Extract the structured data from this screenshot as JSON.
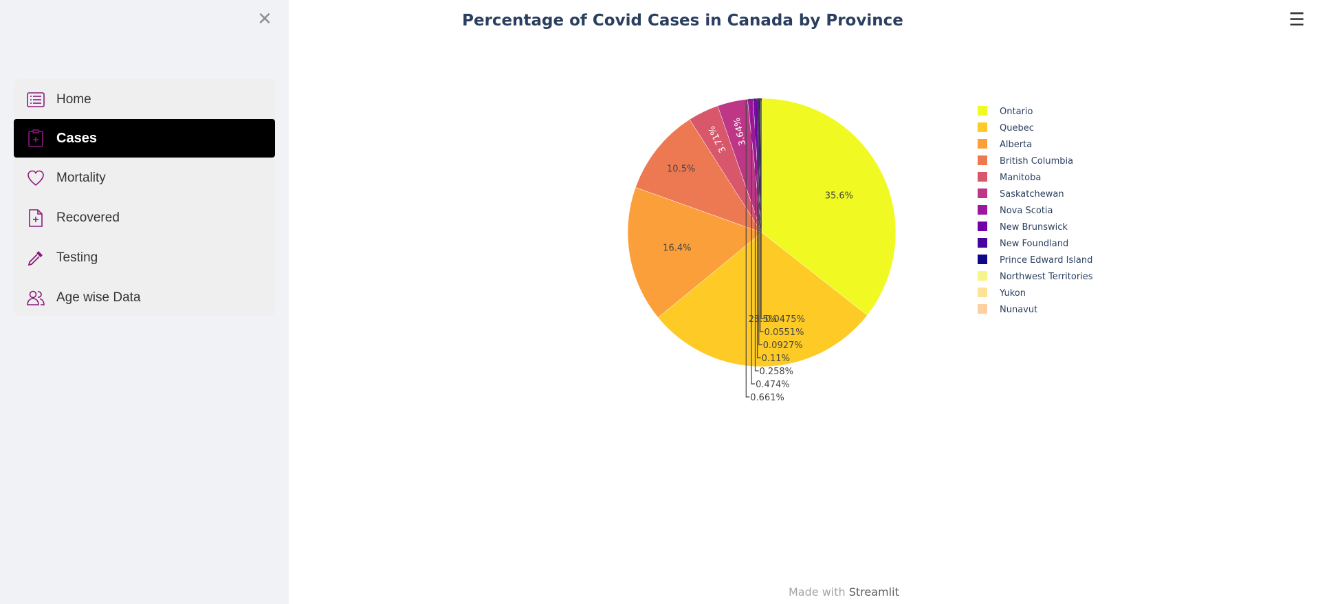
{
  "sidebar": {
    "items": [
      {
        "label": "Home",
        "icon": "list-icon"
      },
      {
        "label": "Cases",
        "icon": "clipboard-plus-icon",
        "active": true
      },
      {
        "label": "Mortality",
        "icon": "heart-icon"
      },
      {
        "label": "Recovered",
        "icon": "file-plus-icon"
      },
      {
        "label": "Testing",
        "icon": "eyedropper-icon"
      },
      {
        "label": "Age wise Data",
        "icon": "people-icon"
      }
    ],
    "accent_color": "#8b1a7e"
  },
  "footer": {
    "prefix": "Made with ",
    "brand": "Streamlit"
  },
  "chart_data": {
    "type": "pie",
    "title": "Percentage of Covid Cases in Canada by Province",
    "categories": [
      "Ontario",
      "Quebec",
      "Alberta",
      "British Columbia",
      "Manitoba",
      "Saskatchewan",
      "Nova Scotia",
      "New Brunswick",
      "New Foundland",
      "Prince Edward Island",
      "Northwest Territories",
      "Yukon",
      "Nunavut"
    ],
    "values": [
      35.6,
      28.5,
      16.4,
      10.5,
      3.71,
      3.64,
      0.661,
      0.474,
      0.258,
      0.11,
      0.0927,
      0.0551,
      0.0475
    ],
    "labels": [
      "35.6%",
      "28.5%",
      "16.4%",
      "10.5%",
      "3.71%",
      "3.64%",
      "0.661%",
      "0.474%",
      "0.258%",
      "0.11%",
      "0.0927%",
      "0.0551%",
      "0.0475%"
    ],
    "colors": [
      "#f0f921",
      "#fdca26",
      "#fb9f3a",
      "#ed7953",
      "#d8576b",
      "#bd3786",
      "#9c179e",
      "#7201a8",
      "#46039f",
      "#0d0887",
      "#f5f58a",
      "#fee396",
      "#fdd0a2"
    ],
    "legend_position": "right"
  }
}
